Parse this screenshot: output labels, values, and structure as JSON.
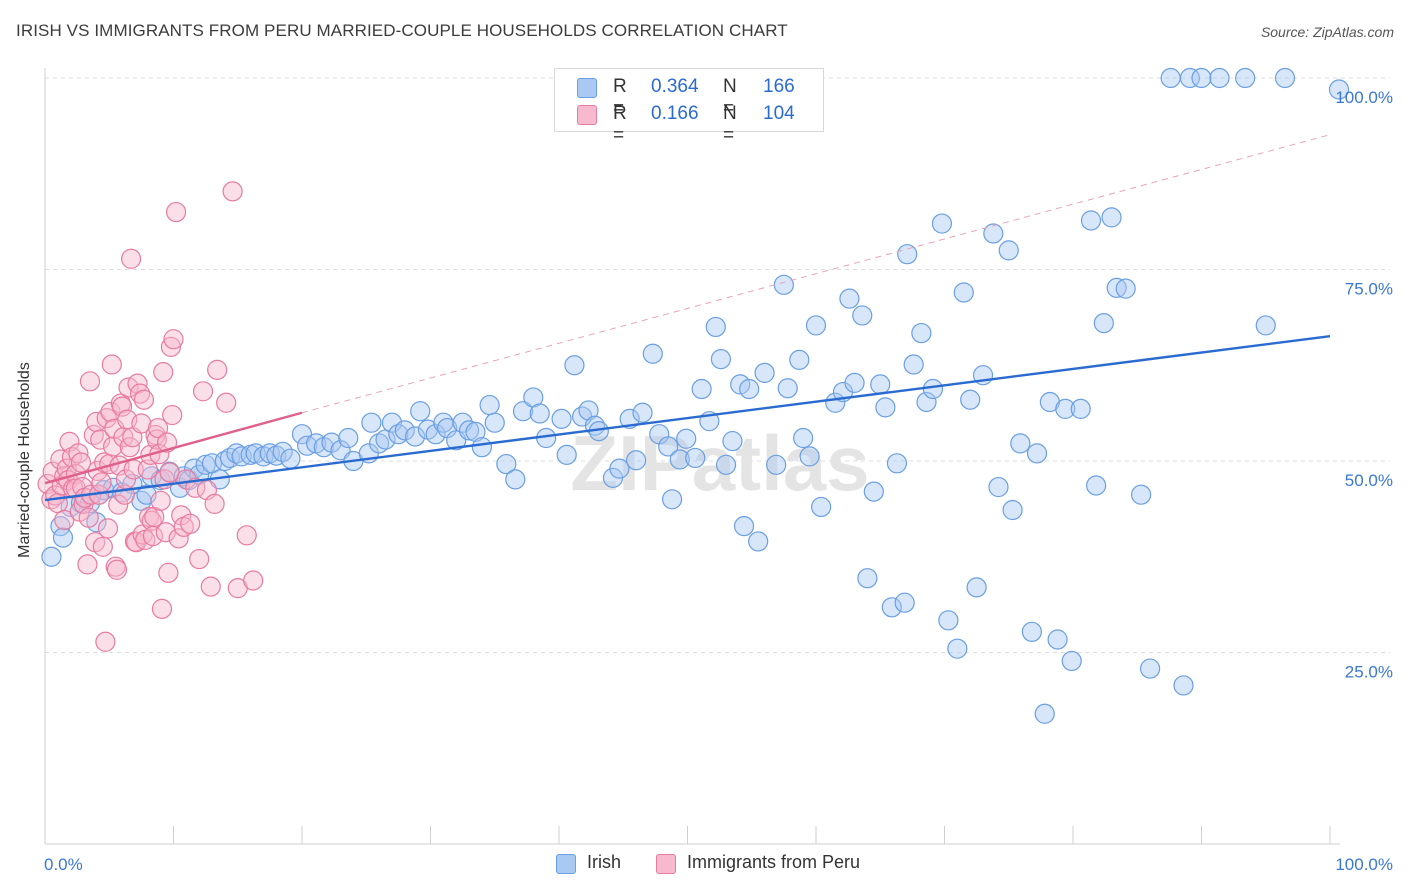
{
  "title": "IRISH VS IMMIGRANTS FROM PERU MARRIED-COUPLE HOUSEHOLDS CORRELATION CHART",
  "source": "Source: ZipAtlas.com",
  "watermark": "ZIPatlas",
  "stats": [
    {
      "r_label": "R =",
      "r_value": "0.364",
      "n_label": "N =",
      "n_value": "166",
      "color": "#a9c8f2"
    },
    {
      "r_label": "R =",
      "r_value": "0.166",
      "n_label": "N =",
      "n_value": "104",
      "color": "#f7b9cd"
    }
  ],
  "chart_data": {
    "type": "scatter",
    "title": "IRISH VS IMMIGRANTS FROM PERU MARRIED-COUPLE HOUSEHOLDS CORRELATION CHART",
    "xlabel": "",
    "ylabel": "Married-couple Households",
    "xlim": [
      0,
      100
    ],
    "ylim": [
      0,
      100
    ],
    "x_tick_labels": [
      "0.0%",
      "100.0%"
    ],
    "y_ticks": [
      25,
      50,
      75,
      100
    ],
    "y_tick_labels": [
      "25.0%",
      "50.0%",
      "75.0%",
      "100.0%"
    ],
    "grid": "horizontal dashed",
    "legend_position": "bottom-center",
    "series": [
      {
        "name": "Irish",
        "color": "#6a9fe3",
        "fill": "#a9c8f2",
        "trend": {
          "x": [
            0,
            100
          ],
          "y": [
            44.9,
            66.3
          ],
          "color": "#2a6bd1",
          "dash": false
        },
        "points": [
          [
            0.5,
            37.5
          ],
          [
            1.2,
            41.5
          ],
          [
            1.4,
            40
          ],
          [
            2,
            44
          ],
          [
            2.8,
            44.5
          ],
          [
            3.5,
            44.5
          ],
          [
            4,
            42
          ],
          [
            4.2,
            45.6
          ],
          [
            4.6,
            46.2
          ],
          [
            5.3,
            46.5
          ],
          [
            6,
            45.9
          ],
          [
            6.8,
            47
          ],
          [
            7.5,
            44.8
          ],
          [
            7.9,
            45.6
          ],
          [
            8.3,
            48
          ],
          [
            9,
            47.5
          ],
          [
            9.7,
            48.6
          ],
          [
            10.5,
            46.5
          ],
          [
            10.8,
            48
          ],
          [
            11.2,
            47.5
          ],
          [
            11.6,
            49
          ],
          [
            12,
            48.2
          ],
          [
            12.5,
            49.5
          ],
          [
            13,
            49.7
          ],
          [
            13.6,
            47.6
          ],
          [
            14,
            50
          ],
          [
            14.4,
            50.4
          ],
          [
            14.9,
            51
          ],
          [
            15.3,
            50.6
          ],
          [
            16,
            50.8
          ],
          [
            16.4,
            51
          ],
          [
            17,
            50.6
          ],
          [
            17.5,
            51
          ],
          [
            18,
            50.7
          ],
          [
            18.5,
            51.2
          ],
          [
            19.1,
            50.3
          ],
          [
            20,
            53.5
          ],
          [
            20.4,
            52
          ],
          [
            21.1,
            52.3
          ],
          [
            21.7,
            51.8
          ],
          [
            22.3,
            52.4
          ],
          [
            23,
            51.4
          ],
          [
            23.6,
            53
          ],
          [
            24,
            50
          ],
          [
            25.2,
            51
          ],
          [
            25.4,
            55
          ],
          [
            26,
            52.3
          ],
          [
            26.5,
            52.8
          ],
          [
            27,
            55
          ],
          [
            27.5,
            53.5
          ],
          [
            28,
            54
          ],
          [
            28.8,
            53.2
          ],
          [
            29.2,
            56.5
          ],
          [
            29.8,
            54.1
          ],
          [
            30.4,
            53.5
          ],
          [
            31,
            55
          ],
          [
            31.3,
            54.3
          ],
          [
            32,
            52.7
          ],
          [
            32.5,
            55
          ],
          [
            33,
            54
          ],
          [
            33.5,
            53.8
          ],
          [
            34,
            51.8
          ],
          [
            34.6,
            57.3
          ],
          [
            35,
            55
          ],
          [
            35.9,
            49.6
          ],
          [
            36.6,
            47.6
          ],
          [
            37.2,
            56.5
          ],
          [
            38,
            58.3
          ],
          [
            38.5,
            56.2
          ],
          [
            39,
            53
          ],
          [
            40.2,
            55.5
          ],
          [
            40.6,
            50.8
          ],
          [
            41.2,
            62.5
          ],
          [
            41.8,
            55.8
          ],
          [
            42.3,
            56.6
          ],
          [
            42.8,
            54.6
          ],
          [
            43.1,
            53.9
          ],
          [
            44.2,
            47.8
          ],
          [
            44.7,
            49
          ],
          [
            45.5,
            55.5
          ],
          [
            46,
            50.1
          ],
          [
            46.5,
            56.3
          ],
          [
            47.3,
            64
          ],
          [
            47.8,
            53.5
          ],
          [
            48.5,
            51.9
          ],
          [
            48.8,
            45
          ],
          [
            49.4,
            50.2
          ],
          [
            49.9,
            52.9
          ],
          [
            50.6,
            50.4
          ],
          [
            51.1,
            59.4
          ],
          [
            51.7,
            55.2
          ],
          [
            52.2,
            67.5
          ],
          [
            52.6,
            63.3
          ],
          [
            53,
            49.5
          ],
          [
            53.5,
            52.6
          ],
          [
            54.1,
            60
          ],
          [
            54.4,
            41.5
          ],
          [
            54.8,
            59.4
          ],
          [
            55.5,
            39.5
          ],
          [
            56,
            61.5
          ],
          [
            56.9,
            49.5
          ],
          [
            57.5,
            73
          ],
          [
            57.8,
            59.5
          ],
          [
            58.7,
            63.2
          ],
          [
            59,
            53
          ],
          [
            59.5,
            50.6
          ],
          [
            60,
            67.7
          ],
          [
            60.4,
            44
          ],
          [
            61.5,
            57.6
          ],
          [
            62.1,
            59
          ],
          [
            62.6,
            71.2
          ],
          [
            63,
            60.2
          ],
          [
            63.6,
            69
          ],
          [
            64,
            34.7
          ],
          [
            64.5,
            46
          ],
          [
            65,
            60
          ],
          [
            65.4,
            57
          ],
          [
            65.9,
            30.9
          ],
          [
            66.3,
            49.7
          ],
          [
            66.9,
            31.5
          ],
          [
            67.1,
            77
          ],
          [
            67.6,
            62.6
          ],
          [
            68.2,
            66.7
          ],
          [
            68.6,
            57.7
          ],
          [
            69.1,
            59.4
          ],
          [
            69.8,
            81
          ],
          [
            70.3,
            29.2
          ],
          [
            71,
            25.5
          ],
          [
            71.5,
            72
          ],
          [
            72,
            58
          ],
          [
            72.5,
            33.5
          ],
          [
            73,
            61.2
          ],
          [
            73.8,
            79.7
          ],
          [
            74.2,
            46.6
          ],
          [
            75,
            77.5
          ],
          [
            75.3,
            43.6
          ],
          [
            75.9,
            52.3
          ],
          [
            76.8,
            27.7
          ],
          [
            77.2,
            51
          ],
          [
            77.8,
            17
          ],
          [
            78.2,
            57.7
          ],
          [
            78.8,
            26.7
          ],
          [
            79.4,
            56.8
          ],
          [
            79.9,
            23.9
          ],
          [
            80.6,
            56.8
          ],
          [
            81.4,
            81.4
          ],
          [
            81.8,
            46.8
          ],
          [
            82.4,
            68
          ],
          [
            83,
            81.8
          ],
          [
            83.4,
            72.6
          ],
          [
            84.1,
            72.5
          ],
          [
            85.3,
            45.6
          ],
          [
            86,
            22.9
          ],
          [
            87.6,
            100
          ],
          [
            88.6,
            20.7
          ],
          [
            89.1,
            100
          ],
          [
            90,
            100
          ],
          [
            91.4,
            100
          ],
          [
            93.4,
            100
          ],
          [
            95,
            67.7
          ],
          [
            96.5,
            100
          ],
          [
            100.7,
            98.5
          ]
        ]
      },
      {
        "name": "Immigrants from Peru",
        "color": "#e87ba0",
        "fill": "#f7b9cd",
        "trend": {
          "x": [
            0,
            20
          ],
          "y": [
            47.1,
            56.3
          ],
          "color": "#e0608c",
          "dash": false
        },
        "trend_extension": {
          "x": [
            20,
            100
          ],
          "y": [
            56.3,
            92.6
          ],
          "color": "#e8a3ba",
          "dash": true
        },
        "points": [
          [
            0.2,
            47
          ],
          [
            0.5,
            45
          ],
          [
            0.6,
            48.6
          ],
          [
            0.8,
            45.5
          ],
          [
            1,
            44.5
          ],
          [
            1.2,
            50.2
          ],
          [
            1.3,
            46.8
          ],
          [
            1.5,
            42.3
          ],
          [
            1.5,
            48
          ],
          [
            1.7,
            49
          ],
          [
            1.8,
            47.5
          ],
          [
            1.9,
            52.5
          ],
          [
            2.1,
            50.5
          ],
          [
            2.2,
            46.4
          ],
          [
            2.4,
            48.3
          ],
          [
            2.4,
            46.4
          ],
          [
            2.6,
            51
          ],
          [
            2.7,
            43.4
          ],
          [
            2.8,
            49.8
          ],
          [
            2.9,
            46.6
          ],
          [
            3,
            44.4
          ],
          [
            3.1,
            45.2
          ],
          [
            3.3,
            36.5
          ],
          [
            3.4,
            42.6
          ],
          [
            3.5,
            60.4
          ],
          [
            3.6,
            45.6
          ],
          [
            3.8,
            53.4
          ],
          [
            3.9,
            39.4
          ],
          [
            4,
            55.1
          ],
          [
            4.1,
            48.7
          ],
          [
            4.2,
            45.6
          ],
          [
            4.3,
            52.8
          ],
          [
            4.4,
            47.2
          ],
          [
            4.5,
            38.8
          ],
          [
            4.6,
            49.8
          ],
          [
            4.7,
            26.4
          ],
          [
            4.8,
            55.6
          ],
          [
            4.9,
            41.2
          ],
          [
            5,
            49.6
          ],
          [
            5.1,
            56.4
          ],
          [
            5.2,
            62.6
          ],
          [
            5.3,
            51.9
          ],
          [
            5.4,
            54.2
          ],
          [
            5.5,
            36.2
          ],
          [
            5.6,
            35.8
          ],
          [
            5.7,
            44.3
          ],
          [
            5.8,
            49.4
          ],
          [
            5.9,
            57.5
          ],
          [
            6,
            57.1
          ],
          [
            6.1,
            53.1
          ],
          [
            6.2,
            45.6
          ],
          [
            6.3,
            47.6
          ],
          [
            6.4,
            55.4
          ],
          [
            6.5,
            59.6
          ],
          [
            6.6,
            51.8
          ],
          [
            6.7,
            76.4
          ],
          [
            6.8,
            53.1
          ],
          [
            6.9,
            48.9
          ],
          [
            7,
            39.5
          ],
          [
            7.1,
            39.4
          ],
          [
            7.2,
            60.1
          ],
          [
            7.4,
            58.8
          ],
          [
            7.5,
            54.9
          ],
          [
            7.6,
            40.4
          ],
          [
            7.7,
            58
          ],
          [
            7.8,
            39.7
          ],
          [
            8,
            48.9
          ],
          [
            8.1,
            42.7
          ],
          [
            8.2,
            50.8
          ],
          [
            8.3,
            42.2
          ],
          [
            8.4,
            40.2
          ],
          [
            8.5,
            42.7
          ],
          [
            8.6,
            53.4
          ],
          [
            8.7,
            52.8
          ],
          [
            8.8,
            54.3
          ],
          [
            8.9,
            50.9
          ],
          [
            9,
            44.8
          ],
          [
            9.1,
            30.7
          ],
          [
            9.2,
            61.6
          ],
          [
            9.3,
            47.6
          ],
          [
            9.4,
            40.7
          ],
          [
            9.5,
            52.4
          ],
          [
            9.6,
            35.4
          ],
          [
            9.7,
            48.5
          ],
          [
            9.8,
            64.9
          ],
          [
            9.9,
            56
          ],
          [
            10,
            65.9
          ],
          [
            10.2,
            82.5
          ],
          [
            10.4,
            39.9
          ],
          [
            10.6,
            42.9
          ],
          [
            10.8,
            41.4
          ],
          [
            11,
            47.6
          ],
          [
            11.3,
            41.8
          ],
          [
            11.7,
            46.5
          ],
          [
            12,
            37.2
          ],
          [
            12.3,
            59.1
          ],
          [
            12.6,
            46.2
          ],
          [
            12.9,
            33.6
          ],
          [
            13.2,
            44.4
          ],
          [
            13.4,
            61.9
          ],
          [
            14.1,
            57.6
          ],
          [
            14.6,
            85.2
          ],
          [
            15,
            33.4
          ],
          [
            15.7,
            40.3
          ],
          [
            16.2,
            34.4
          ]
        ]
      }
    ]
  },
  "legend": [
    {
      "label": "Irish",
      "color": "#a9c8f2",
      "border": "#6a9fe3"
    },
    {
      "label": "Immigrants from Peru",
      "color": "#f7b9cd",
      "border": "#e87ba0"
    }
  ]
}
